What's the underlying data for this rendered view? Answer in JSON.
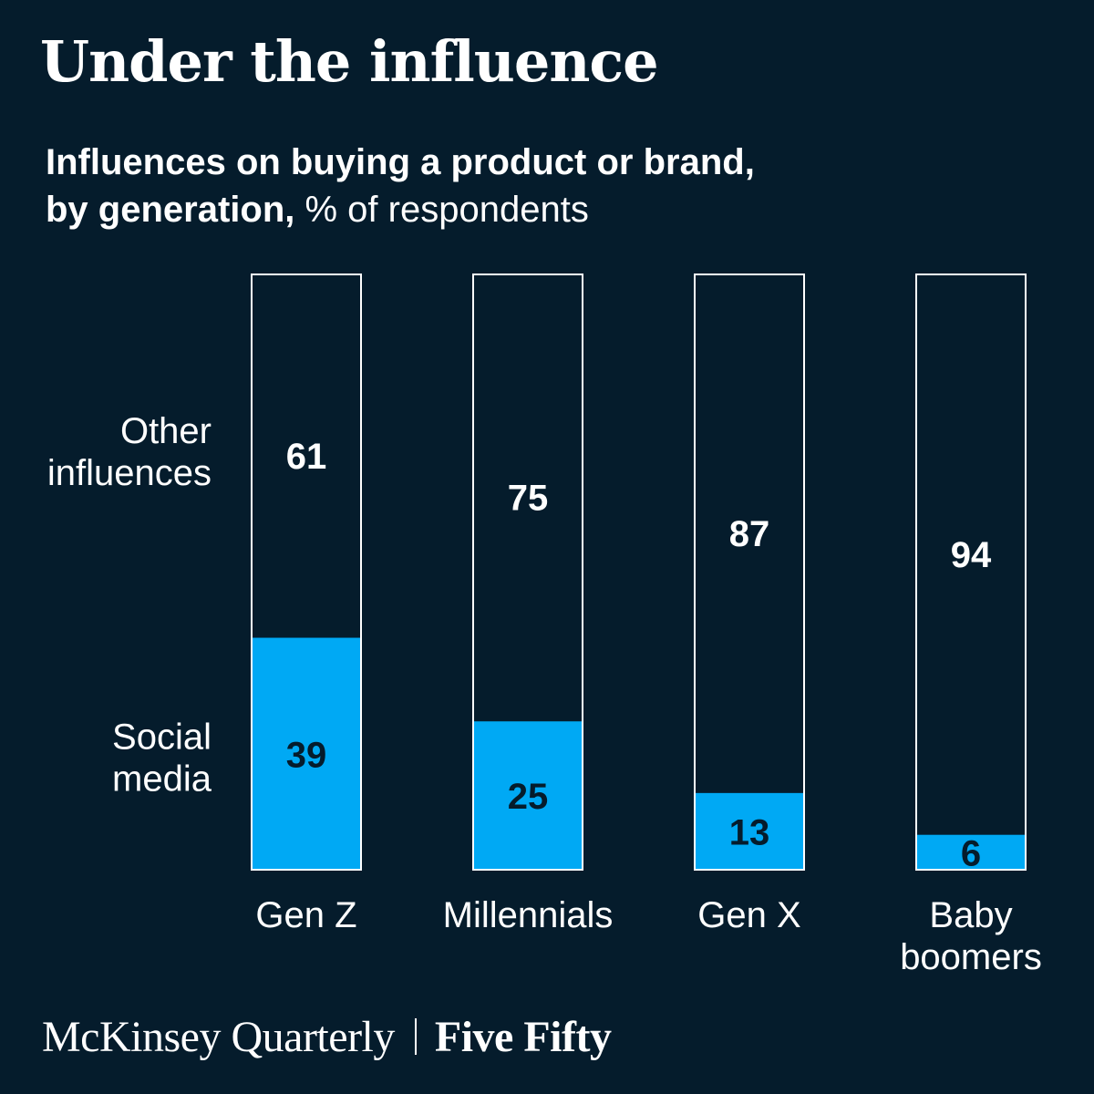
{
  "title": "Under the influence",
  "subtitle_bold_line1": "Influences on buying a product or brand,",
  "subtitle_bold_line2": "by generation,",
  "subtitle_unit": " % of respondents",
  "footer": {
    "publication": "McKinsey Quarterly",
    "section": "Five Fifty"
  },
  "colors": {
    "background": "#051c2c",
    "social_media": "#00a9f4",
    "other": "#051c2c",
    "outline": "#ffffff",
    "text": "#ffffff"
  },
  "chart_data": {
    "type": "bar",
    "stacked": true,
    "ylim": [
      0,
      100
    ],
    "grid": false,
    "categories": [
      [
        "Gen Z"
      ],
      [
        "Millennials"
      ],
      [
        "Gen X"
      ],
      [
        "Baby",
        "boomers"
      ]
    ],
    "series": [
      {
        "name": [
          "Social",
          "media"
        ],
        "values": [
          39,
          25,
          13,
          6
        ]
      },
      {
        "name": [
          "Other",
          "influences"
        ],
        "values": [
          61,
          75,
          87,
          94
        ]
      }
    ]
  }
}
